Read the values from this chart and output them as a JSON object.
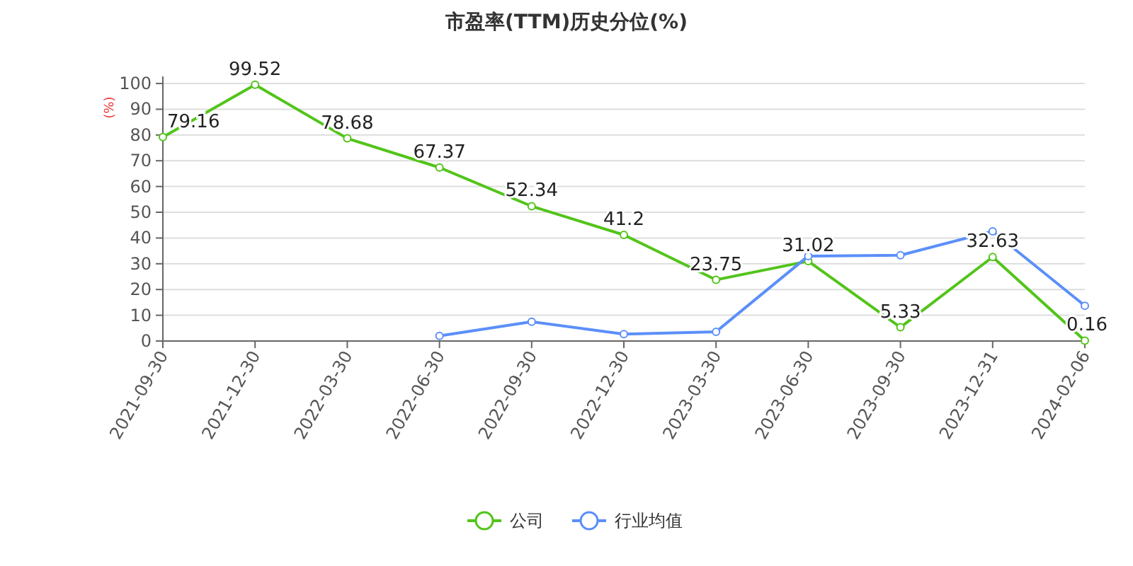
{
  "chart_data": {
    "type": "line",
    "title": "市盈率(TTM)历史分位(%)",
    "ylabel": "(%)",
    "categories": [
      "2021-09-30",
      "2021-12-30",
      "2022-03-30",
      "2022-06-30",
      "2022-09-30",
      "2022-12-30",
      "2023-03-30",
      "2023-06-30",
      "2023-09-30",
      "2023-12-31",
      "2024-02-06"
    ],
    "series": [
      {
        "name": "公司",
        "color": "#52c41a",
        "values": [
          79.16,
          99.52,
          78.68,
          67.37,
          52.34,
          41.2,
          23.75,
          31.02,
          5.33,
          32.63,
          0.16
        ],
        "data_labels": true
      },
      {
        "name": "行业均值",
        "color": "#5b8ff9",
        "values": [
          null,
          null,
          null,
          2,
          7.5,
          2.7,
          3.6,
          33,
          33.3,
          42.6,
          13.7
        ]
      }
    ],
    "ylim": [
      0,
      100
    ],
    "yticks": [
      0,
      10,
      20,
      30,
      40,
      50,
      60,
      70,
      80,
      90,
      100
    ],
    "grid": "y",
    "legend": "bottom",
    "marker": "circle"
  }
}
